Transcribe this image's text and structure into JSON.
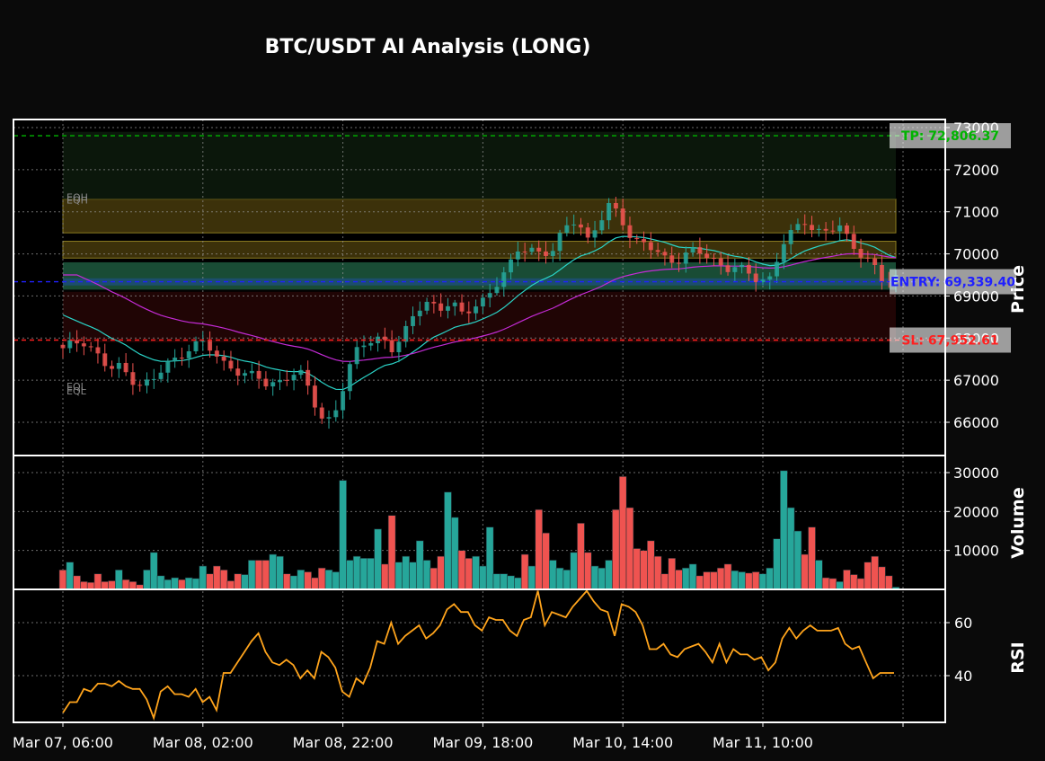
{
  "chart_data": {
    "type": "candlestick",
    "title": "BTC/USDT AI Analysis (LONG)",
    "x_tick_labels": [
      "Mar 07, 06:00",
      "Mar 08, 02:00",
      "Mar 08, 22:00",
      "Mar 09, 18:00",
      "Mar 10, 14:00",
      "Mar 11, 10:00"
    ],
    "bar_interval_hours": 1,
    "grid": true,
    "price_panel": {
      "ylabel": "Price",
      "ylim": [
        65200,
        73200
      ],
      "yticks": [
        66000,
        67000,
        68000,
        69000,
        70000,
        71000,
        72000,
        73000
      ],
      "close_anchors": [
        67700,
        67900,
        67950,
        67600,
        67250,
        67300,
        67050,
        66900,
        67000,
        67350,
        67500,
        67800,
        67900,
        67700,
        67400,
        67300,
        67150,
        67050,
        66850,
        67000,
        67200,
        67100,
        66450,
        65950,
        66400,
        67200,
        67800,
        67950,
        68050,
        67700,
        68100,
        68700,
        68900,
        68700,
        68800,
        68550,
        68800,
        68950,
        69250,
        69600,
        70200,
        70150,
        69950,
        70050,
        70650,
        70900,
        70300,
        70700,
        71200,
        70850,
        70300,
        70200,
        70050,
        69850,
        69900,
        70050,
        70000,
        69850,
        69700,
        69700,
        69500,
        69350,
        69450,
        70250,
        70500,
        70750,
        70550,
        70600,
        70650,
        70200,
        70000,
        69800,
        69300,
        69350
      ],
      "ema_fast_color": "#2ad4c8",
      "ema_slow_color": "#c42bd6",
      "up_color": "#26a69a",
      "down_color": "#ef5350",
      "zones": [
        {
          "type": "premium",
          "from": 70500,
          "to": 71300,
          "color": "#6e5a12"
        },
        {
          "type": "premium",
          "from": 69900,
          "to": 70300,
          "color": "#6e5a12"
        },
        {
          "type": "entry_zone",
          "from": 69150,
          "to": 69800,
          "color": "#2e8a60"
        },
        {
          "type": "discount",
          "from": 67900,
          "to": 69100,
          "color": "#3a0a0a"
        },
        {
          "type": "target_area",
          "from": 71300,
          "to": 72900,
          "color": "#0c1a0c"
        }
      ],
      "levels": [
        {
          "label": "TP: 72,806.37",
          "price": 72806.37,
          "color": "#00b400"
        },
        {
          "label": "ENTRY: 69,339.40",
          "price": 69339.4,
          "color": "#2020ff"
        },
        {
          "label": "SL: 67,952.61",
          "price": 67952.61,
          "color": "#ff2020"
        }
      ],
      "liquidity_marks": [
        {
          "label": "EQH",
          "price": 71350
        },
        {
          "label": "EQH",
          "price": 71280
        },
        {
          "label": "EQL",
          "price": 66850
        },
        {
          "label": "EQL",
          "price": 66750
        }
      ]
    },
    "volume_panel": {
      "ylabel": "Volume",
      "ylim": [
        0,
        32000
      ],
      "yticks": [
        10000,
        20000,
        30000
      ],
      "values": [
        5000,
        7000,
        3500,
        2000,
        1800,
        4000,
        2000,
        2200,
        5000,
        2500,
        2000,
        1200,
        5000,
        9500,
        3500,
        2500,
        3000,
        2500,
        3000,
        2800,
        6000,
        4000,
        6000,
        5000,
        2200,
        4000,
        3800,
        7500,
        7500,
        7500,
        9000,
        8500,
        4000,
        3500,
        5000,
        4500,
        3000,
        5500,
        5000,
        4500,
        28000,
        7500,
        8500,
        8000,
        8000,
        15500,
        6500,
        19000,
        7000,
        8500,
        7000,
        12500,
        7500,
        5500,
        8500,
        25000,
        18500,
        10000,
        8000,
        8500,
        6000,
        16000,
        4000,
        4000,
        3500,
        3000,
        9000,
        6000,
        20500,
        14500,
        7500,
        5500,
        5000,
        9500,
        17000,
        9500,
        6000,
        5500,
        7500,
        20500,
        29000,
        21000,
        10500,
        10000,
        12500,
        8500,
        4000,
        8000,
        5000,
        5500,
        6500,
        3500,
        4500,
        4500,
        5500,
        6500,
        4800,
        4500,
        4200,
        4500,
        4000,
        5500,
        13000,
        30500,
        21000,
        15000,
        9000,
        16000,
        7500,
        3000,
        2800,
        2000,
        5000,
        3800,
        2800,
        7000,
        8500,
        5800,
        3500,
        600
      ]
    },
    "rsi_panel": {
      "ylabel": "RSI",
      "ylim": [
        21,
        76
      ],
      "yticks": [
        40,
        60
      ],
      "line_color": "#ffa41c",
      "values": [
        26,
        30,
        30,
        35,
        34,
        37,
        37,
        36,
        38,
        36,
        35,
        35,
        31,
        24,
        34,
        36,
        33,
        33,
        32,
        35,
        30,
        32,
        27,
        41,
        41,
        45,
        49,
        53,
        56,
        49,
        45,
        44,
        46,
        44,
        39,
        42,
        39,
        49,
        47,
        43,
        34,
        32,
        39,
        37,
        43,
        53,
        52,
        60,
        52,
        55,
        57,
        59,
        54,
        56,
        59,
        65,
        67,
        64,
        64,
        59,
        57,
        62,
        61,
        61,
        57,
        55,
        61,
        62,
        72,
        59,
        64,
        63,
        62,
        66,
        69,
        72,
        68,
        65,
        64,
        55,
        67,
        66,
        64,
        59,
        50,
        50,
        52,
        48,
        47,
        50,
        51,
        52,
        49,
        45,
        52,
        45,
        50,
        48,
        48,
        46,
        47,
        42,
        45,
        54,
        58,
        54,
        57,
        59,
        57,
        57,
        57,
        58,
        52,
        50,
        51,
        45,
        39,
        41,
        41,
        41
      ]
    }
  }
}
